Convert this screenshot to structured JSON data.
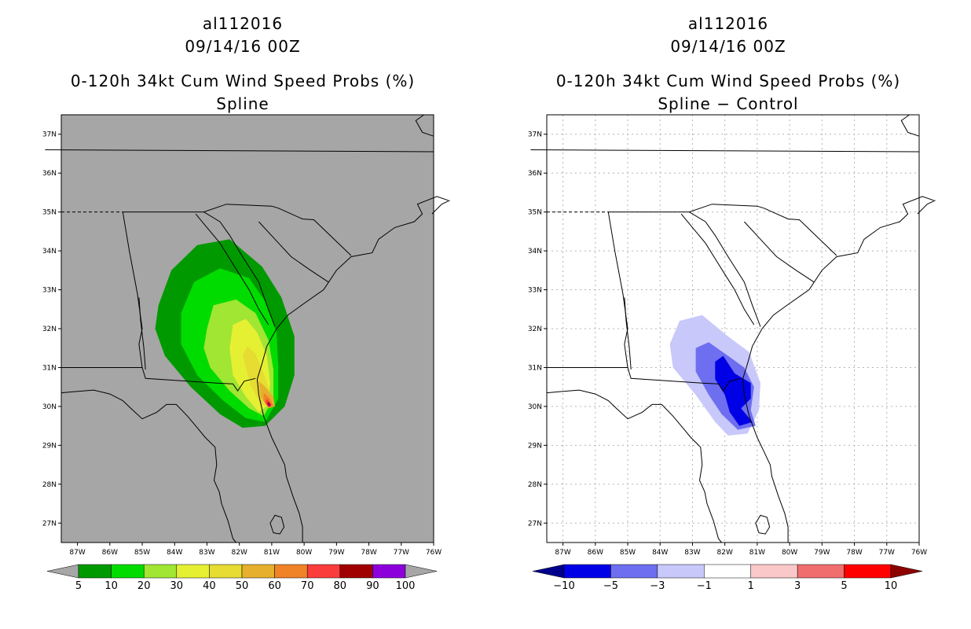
{
  "panels": [
    {
      "id": "left",
      "storm_id": "al112016",
      "datetime": "09/14/16 00Z",
      "product": "0-120h 34kt Cum Wind Speed Probs (%)",
      "subtitle": "Spline",
      "background": "#a6a6a6"
    },
    {
      "id": "right",
      "storm_id": "al112016",
      "datetime": "09/14/16 00Z",
      "product": "0-120h 34kt Cum Wind Speed Probs (%)",
      "subtitle": "Spline − Control",
      "background": "#ffffff"
    }
  ],
  "axes": {
    "lat_labels": [
      "37N",
      "36N",
      "35N",
      "34N",
      "33N",
      "32N",
      "31N",
      "30N",
      "29N",
      "28N",
      "27N"
    ],
    "lon_labels": [
      "87W",
      "86W",
      "85W",
      "84W",
      "83W",
      "82W",
      "81W",
      "80W",
      "79W",
      "78W",
      "77W",
      "76W"
    ]
  },
  "legend_left": {
    "labels": [
      "5",
      "10",
      "20",
      "30",
      "40",
      "50",
      "60",
      "70",
      "80",
      "90",
      "100"
    ],
    "colors": [
      "#009a00",
      "#00dc00",
      "#a0e632",
      "#e6f032",
      "#e6dc32",
      "#e6af2d",
      "#f08228",
      "#fa3c3c",
      "#a00000",
      "#8c00dc"
    ],
    "arrow_color": "#a6a6a6"
  },
  "legend_right": {
    "labels": [
      "−10",
      "−5",
      "−3",
      "−1",
      "1",
      "3",
      "5",
      "10"
    ],
    "colors": [
      "#0000e6",
      "#6e6ef0",
      "#c8c8fa",
      "#ffffff",
      "#fac8c8",
      "#f06e6e",
      "#ff0000"
    ],
    "low_arrow_color": "#00008c",
    "high_arrow_color": "#8c0000"
  },
  "chart_data": {
    "type": "map",
    "domain": {
      "lon_range": [
        -87.5,
        -76
      ],
      "lat_range": [
        26.5,
        37.5
      ]
    },
    "left_field": {
      "name": "Spline",
      "variable": "34kt cumulative wind speed probability (%)",
      "contour_levels": [
        5,
        10,
        20,
        30,
        40,
        50,
        60,
        70,
        80,
        90,
        100
      ],
      "max_value_location": [
        -81.0,
        30.0
      ],
      "max_value_approx": 90
    },
    "right_field": {
      "name": "Spline - Control",
      "variable": "difference in probability (%)",
      "contour_levels": [
        -10,
        -5,
        -3,
        -1,
        1,
        3,
        5,
        10
      ],
      "min_value_region": "Georgia/Florida coast near 81W-82W, 29.5N-31N",
      "min_value_approx": -10
    }
  }
}
